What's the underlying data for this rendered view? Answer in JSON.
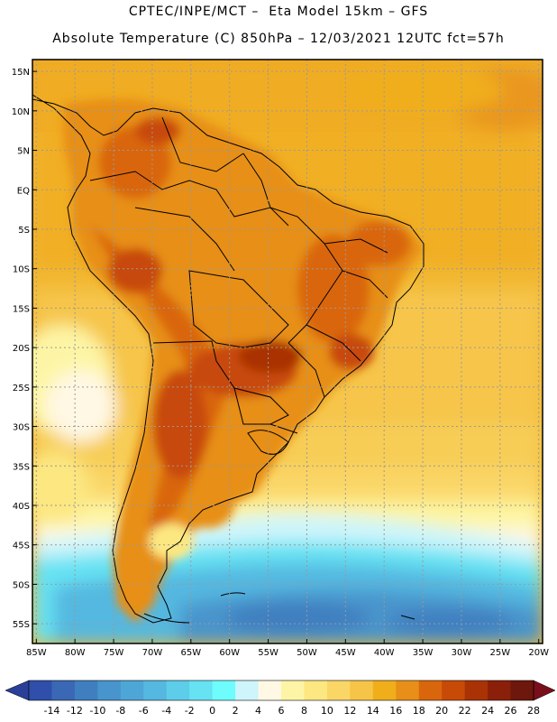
{
  "header": {
    "line1": "CPTEC/INPE/MCT –  Eta Model 15km – GFS",
    "line2": "Absolute Temperature (C) 850hPa – 12/03/2021 12UTC fct=57h"
  },
  "map": {
    "lat_labels": [
      "15N",
      "10N",
      "5N",
      "EQ",
      "5S",
      "10S",
      "15S",
      "20S",
      "25S",
      "30S",
      "35S",
      "40S",
      "45S",
      "50S",
      "55S"
    ],
    "lon_labels": [
      "85W",
      "80W",
      "75W",
      "70W",
      "65W",
      "60W",
      "55W",
      "50W",
      "45W",
      "40W",
      "35W",
      "30W",
      "25W",
      "20W"
    ],
    "lat_range": [
      -57.5,
      16.5
    ],
    "lon_range": [
      -85.5,
      -19.5
    ],
    "gridlines": "dotted"
  },
  "colorbar": {
    "ticks": [
      "-14",
      "-12",
      "-10",
      "-8",
      "-6",
      "-4",
      "-2",
      "0",
      "2",
      "4",
      "6",
      "8",
      "10",
      "12",
      "14",
      "16",
      "18",
      "20",
      "22",
      "24",
      "26",
      "28"
    ],
    "colors": [
      "#2f4faa",
      "#3a68b4",
      "#3f7fc0",
      "#4894cc",
      "#4ea6d6",
      "#55b8e0",
      "#5ecde9",
      "#66e2f3",
      "#6ffcfc",
      "#cdf5fb",
      "#fff8e4",
      "#fdf5a5",
      "#fce781",
      "#fad667",
      "#f6c446",
      "#f0ae1a",
      "#e78f18",
      "#d9660c",
      "#c84a07",
      "#a93305",
      "#8a200a",
      "#6e170d"
    ]
  },
  "colors": {
    "land_line": "#000000",
    "grid": "#9a9a9a"
  }
}
